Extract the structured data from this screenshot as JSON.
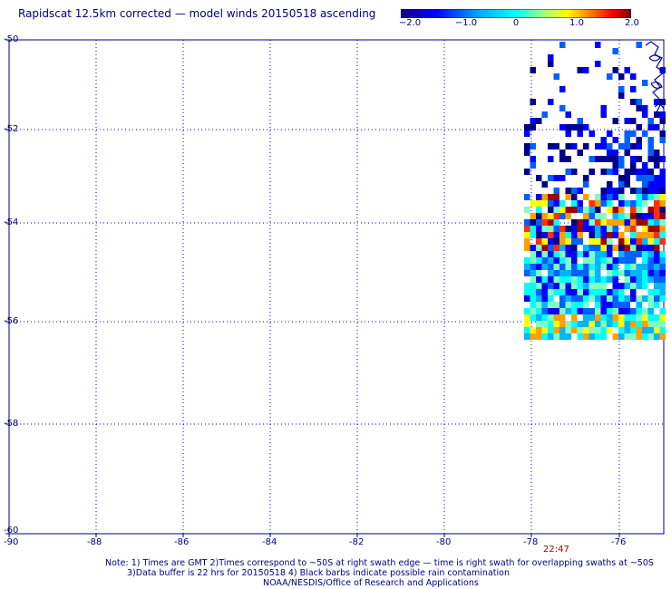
{
  "title": "Rapidscat 12.5km corrected — model winds 20150518 ascending",
  "colorbar": {
    "ticks": [
      "−2.0",
      "−1.0",
      "0",
      "1.0",
      "2.0"
    ],
    "colors": [
      "#1a0080",
      "#0000ff",
      "#00b0ff",
      "#00ffff",
      "#a0ff80",
      "#ffff00",
      "#ff8000",
      "#ff0000",
      "#800000"
    ]
  },
  "map": {
    "lon_ticks": [
      "-90",
      "-88",
      "-86",
      "-84",
      "-82",
      "-80",
      "-78",
      "-76"
    ],
    "lat_ticks": [
      "-50",
      "-52",
      "-54",
      "-56",
      "-58",
      "-60"
    ],
    "time_label": "22:47"
  },
  "notes": {
    "line1": "Note: 1) Times are GMT 2)Times correspond to ~50S at right swath edge — time is right swath for overlapping swaths at ~50S",
    "line2": "3)Data buffer is 22 hrs for 20150518 4) Black barbs indicate possible rain contamination",
    "line3": "NOAA/NESDIS/Office of Research and Applications"
  }
}
